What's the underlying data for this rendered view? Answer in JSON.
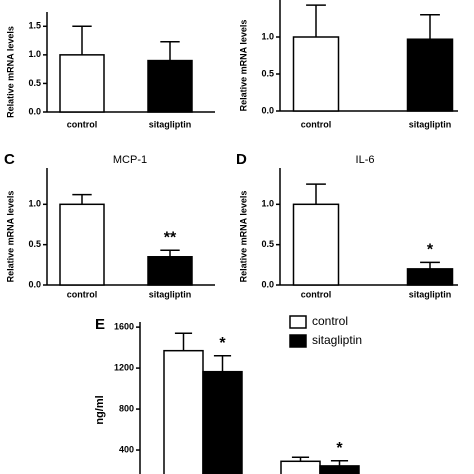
{
  "chart_data": [
    {
      "type": "bar",
      "ylabel": "Relative mRNA levels",
      "categories": [
        "control",
        "sitagliptin"
      ],
      "colors": [
        "#ffffff",
        "#000000"
      ],
      "values": [
        1.0,
        0.9
      ],
      "errors": [
        0.5,
        0.33
      ],
      "ylim": [
        0,
        1.75
      ],
      "yticks": [
        {
          "value": 0,
          "label": "0.0"
        },
        {
          "value": 0.5,
          "label": "0.5"
        },
        {
          "value": 1,
          "label": "1.0"
        },
        {
          "value": 1.5,
          "label": "1.5"
        }
      ]
    },
    {
      "type": "bar",
      "ylabel": "Relative mRNA levels",
      "categories": [
        "control",
        "sitagliptin"
      ],
      "colors": [
        "#ffffff",
        "#000000"
      ],
      "values": [
        1.0,
        0.97
      ],
      "errors": [
        0.43,
        0.33
      ],
      "ylim": [
        0,
        1.5
      ],
      "yticks": [
        {
          "value": 0,
          "label": "0.0"
        },
        {
          "value": 0.5,
          "label": "0.5"
        },
        {
          "value": 1,
          "label": "1.0"
        }
      ]
    },
    {
      "type": "bar",
      "panel": "C",
      "title": "MCP-1",
      "ylabel": "Relative mRNA levels",
      "categories": [
        "control",
        "sitagliptin"
      ],
      "colors": [
        "#ffffff",
        "#000000"
      ],
      "values": [
        1.0,
        0.35
      ],
      "errors": [
        0.12,
        0.08
      ],
      "significance": [
        null,
        "**"
      ],
      "ylim": [
        0,
        1.45
      ],
      "yticks": [
        {
          "value": 0,
          "label": "0.0"
        },
        {
          "value": 0.5,
          "label": "0.5"
        },
        {
          "value": 1,
          "label": "1.0"
        }
      ]
    },
    {
      "type": "bar",
      "panel": "D",
      "title": "IL-6",
      "ylabel": "Relative mRNA levels",
      "categories": [
        "control",
        "sitagliptin"
      ],
      "colors": [
        "#ffffff",
        "#000000"
      ],
      "values": [
        1.0,
        0.2
      ],
      "errors": [
        0.25,
        0.08
      ],
      "significance": [
        null,
        "*"
      ],
      "ylim": [
        0,
        1.45
      ],
      "yticks": [
        {
          "value": 0,
          "label": "0.0"
        },
        {
          "value": 0.5,
          "label": "0.5"
        },
        {
          "value": 1,
          "label": "1.0"
        }
      ]
    },
    {
      "type": "grouped-bar",
      "panel": "E",
      "ylabel": "ng/ml",
      "categories": [
        null,
        null
      ],
      "series": [
        {
          "name": "control",
          "color": "#ffffff",
          "values": [
            1370,
            290
          ],
          "errors": [
            170,
            40
          ]
        },
        {
          "name": "sitagliptin",
          "color": "#000000",
          "values": [
            1165,
            245
          ],
          "errors": [
            155,
            50
          ],
          "significance": [
            "*",
            "*"
          ]
        }
      ],
      "ylim": [
        0,
        1650
      ],
      "yticks": [
        400,
        800,
        1200,
        1600
      ],
      "legend": "top-right"
    }
  ]
}
